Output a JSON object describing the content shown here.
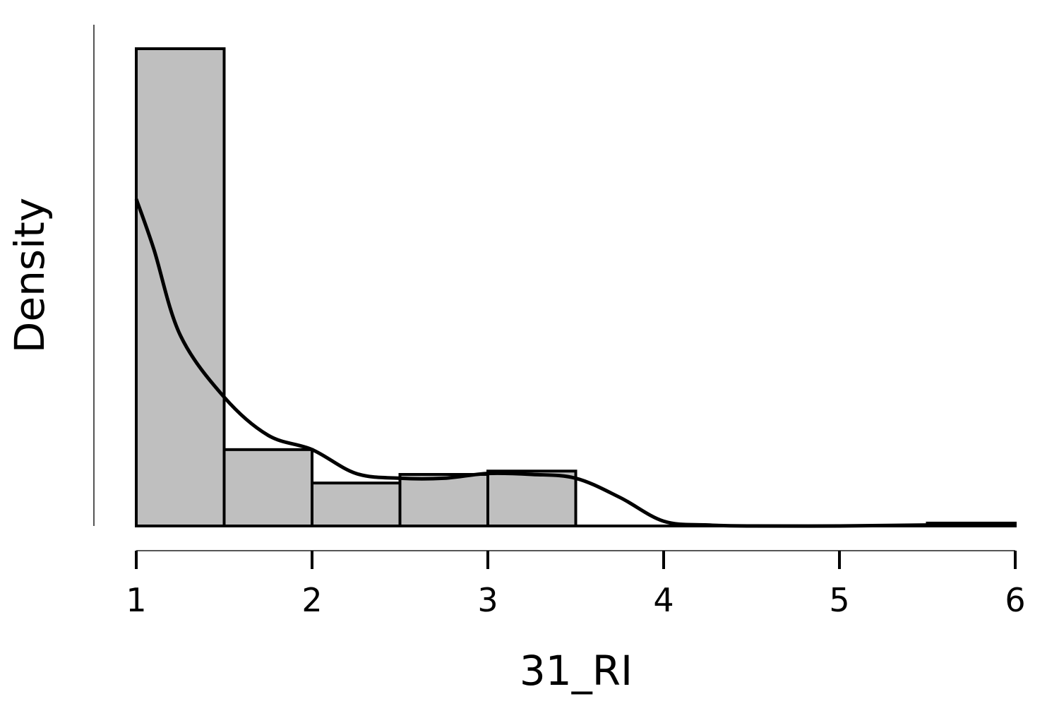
{
  "chart_data": {
    "type": "histogram",
    "title": "",
    "xlabel": "31_RI",
    "ylabel": "Density",
    "xlim": [
      1,
      6
    ],
    "x_ticks": [
      "1",
      "2",
      "3",
      "4",
      "5",
      "6"
    ],
    "y_ticks": [],
    "grid": false,
    "legend": "none",
    "bins": [
      {
        "start": 1.0,
        "end": 1.5,
        "value": 1.0
      },
      {
        "start": 1.5,
        "end": 2.0,
        "value": 0.16
      },
      {
        "start": 2.0,
        "end": 2.5,
        "value": 0.09
      },
      {
        "start": 2.5,
        "end": 3.0,
        "value": 0.108
      },
      {
        "start": 3.0,
        "end": 3.5,
        "value": 0.115
      },
      {
        "start": 5.5,
        "end": 6.0,
        "value": 0.006
      }
    ],
    "density_curve": {
      "x": [
        1.0,
        1.1,
        1.25,
        1.5,
        1.75,
        2.0,
        2.25,
        2.5,
        2.75,
        3.0,
        3.25,
        3.5,
        3.75,
        4.0,
        4.25,
        4.5,
        5.0,
        5.5,
        6.0
      ],
      "y": [
        0.685,
        0.58,
        0.4,
        0.27,
        0.19,
        0.16,
        0.11,
        0.1,
        0.1,
        0.11,
        0.108,
        0.1,
        0.06,
        0.01,
        0.002,
        0.0,
        0.0,
        0.002,
        0.005
      ]
    },
    "colors": {
      "bar_fill": "#bfbfbf",
      "bar_stroke": "#000000",
      "curve": "#000000"
    }
  }
}
